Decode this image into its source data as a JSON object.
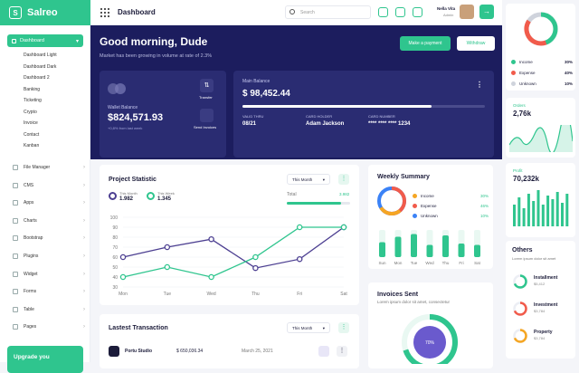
{
  "brand": {
    "name": "Salreo"
  },
  "sidebar": {
    "dashboard": "Dashboard",
    "sub": [
      "Dashboard Light",
      "Dashboard Dark",
      "Dashboard 2",
      "Banking",
      "Ticketing",
      "Crypto",
      "Invoice",
      "Contact",
      "Kanban"
    ],
    "menu": [
      "File Manager",
      "CMS",
      "Apps",
      "Charts",
      "Bootstrap",
      "Plugins",
      "Widget",
      "Forms",
      "Table",
      "Pages"
    ],
    "upgrade": "Upgrade you"
  },
  "topbar": {
    "title": "Dashboard",
    "search_placeholder": "Search",
    "user_name": "Nella Vita",
    "user_role": "Admin"
  },
  "hero": {
    "greeting": "Good morning, Dude",
    "subtitle": "Market has been growing in volume at rate of 2.3%",
    "make_payment": "Make a payment",
    "withdraw": "Withdraw"
  },
  "wallet": {
    "label": "Wallet Balance",
    "amount": "$824,571.93",
    "change": "+0,8% from last week",
    "transfer": "Transfer",
    "send_invoices": "Send Invoices"
  },
  "main_balance": {
    "label": "Main Balance",
    "amount": "$ 98,452.44",
    "progress": 0.78,
    "valid_label": "VALID THRU",
    "valid": "08/21",
    "holder_label": "CARD HOLDER",
    "holder": "Adam Jackson",
    "number_label": "CARD NUMBER",
    "number": "**** **** **** 1234"
  },
  "project": {
    "title": "Project Statistic",
    "filter": "This Month",
    "this_month_label": "This Month",
    "this_month_value": "1.982",
    "this_week_label": "This Week",
    "this_week_value": "1.345",
    "total_label": "Total",
    "total_value": "3.982",
    "total_progress": 0.85
  },
  "chart_data": {
    "type": "line",
    "categories": [
      "Mon",
      "Tue",
      "Wed",
      "Thu",
      "Fri",
      "Sat"
    ],
    "ylim": [
      30,
      100
    ],
    "yticks": [
      100,
      90,
      80,
      70,
      60,
      50,
      40,
      30
    ],
    "series": [
      {
        "name": "This Month",
        "color": "#4c3f91",
        "values": [
          60,
          70,
          78,
          49,
          58,
          90
        ]
      },
      {
        "name": "This Week",
        "color": "#2fc58e",
        "values": [
          40,
          50,
          40,
          60,
          90,
          90
        ]
      }
    ]
  },
  "weekly": {
    "title": "Weekly Summary",
    "items": [
      {
        "label": "Income",
        "value": "30%",
        "color": "#f5a623"
      },
      {
        "label": "Expense",
        "value": "46%",
        "color": "#f15b4b"
      },
      {
        "label": "Unknown",
        "value": "10%",
        "color": "#3b82f6"
      }
    ],
    "days": [
      "Sun",
      "Mon",
      "Tue",
      "Wed",
      "Thu",
      "Fri",
      "Sat"
    ],
    "bars": [
      0.55,
      0.75,
      0.85,
      0.45,
      0.8,
      0.5,
      0.45
    ]
  },
  "transactions": {
    "title": "Lastest Transaction",
    "filter": "This Month",
    "row": {
      "name": "Portu Studio",
      "amount": "$ 650,036.34",
      "date": "March 25, 2021"
    }
  },
  "invoices": {
    "title": "Invoices Sent",
    "subtitle": "Lorem ipsum dolor sit amet, consectetur",
    "center": "70%"
  },
  "right": {
    "legend": [
      {
        "label": "Income",
        "value": "30%",
        "color": "#2fc58e"
      },
      {
        "label": "Expense",
        "value": "40%",
        "color": "#f15b4b"
      },
      {
        "label": "Unknown",
        "value": "10%",
        "color": "#cfd3dc"
      }
    ],
    "orders_label": "Orders",
    "orders_value": "2,76k",
    "profit_label": "Profit",
    "profit_value": "70,232k",
    "others_title": "Others",
    "others_sub": "Lorem ipsum dolor sit amet",
    "others": [
      {
        "label": "Installment",
        "value": "$5,412",
        "color": "#2fc58e"
      },
      {
        "label": "Investment",
        "value": "$3,784",
        "color": "#f15b4b"
      },
      {
        "label": "Property",
        "value": "$3,784",
        "color": "#f5a623"
      }
    ]
  }
}
